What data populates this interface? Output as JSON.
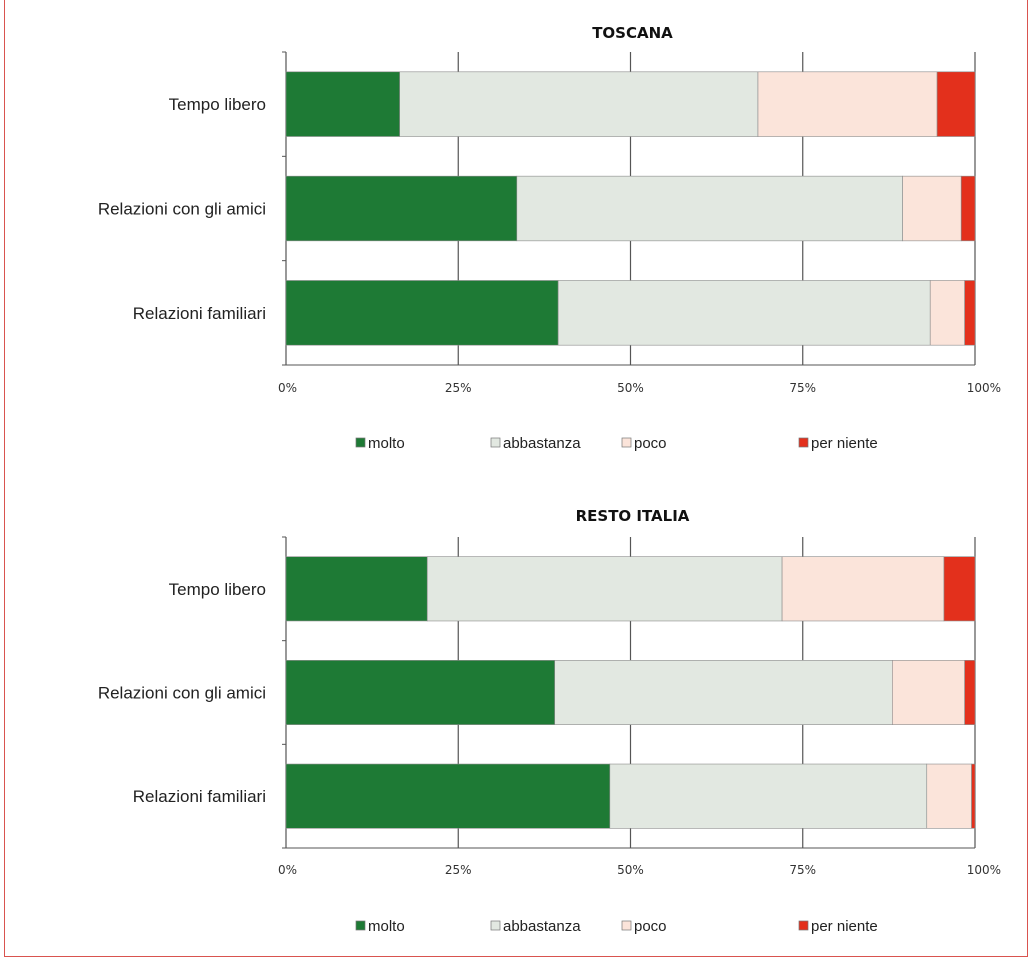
{
  "colors": {
    "molto": "#1e7a35",
    "abbastanza": "#e2e8e1",
    "poco": "#fbe4da",
    "per_niente": "#e3301c",
    "grid": "#555555",
    "frame": "#d9534f"
  },
  "chart_data": [
    {
      "type": "bar",
      "orientation": "horizontal",
      "stacked": "percent",
      "title": "TOSCANA",
      "categories": [
        "Tempo libero",
        "Relazioni con gli amici",
        "Relazioni familiari"
      ],
      "series": [
        {
          "name": "molto",
          "values": [
            16.5,
            33.5,
            39.5
          ]
        },
        {
          "name": "abbastanza",
          "values": [
            52,
            56,
            54
          ]
        },
        {
          "name": "poco",
          "values": [
            26,
            8.5,
            5
          ]
        },
        {
          "name": "per niente",
          "values": [
            5.5,
            2,
            1.5
          ]
        }
      ],
      "xticks": [
        "0%",
        "25%",
        "50%",
        "75%",
        "100%"
      ],
      "xlim": [
        0,
        100
      ],
      "grid": true,
      "legend": [
        "molto",
        "abbastanza",
        "poco",
        "per niente"
      ],
      "legend_position": "bottom"
    },
    {
      "type": "bar",
      "orientation": "horizontal",
      "stacked": "percent",
      "title": "RESTO ITALIA",
      "categories": [
        "Tempo libero",
        "Relazioni con gli amici",
        "Relazioni familiari"
      ],
      "series": [
        {
          "name": "molto",
          "values": [
            20.5,
            39,
            47
          ]
        },
        {
          "name": "abbastanza",
          "values": [
            51.5,
            49,
            46
          ]
        },
        {
          "name": "poco",
          "values": [
            23.5,
            10.5,
            6.5
          ]
        },
        {
          "name": "per niente",
          "values": [
            4.5,
            1.5,
            0.5
          ]
        }
      ],
      "xticks": [
        "0%",
        "25%",
        "50%",
        "75%",
        "100%"
      ],
      "xlim": [
        0,
        100
      ],
      "grid": true,
      "legend": [
        "molto",
        "abbastanza",
        "poco",
        "per niente"
      ],
      "legend_position": "bottom"
    }
  ]
}
